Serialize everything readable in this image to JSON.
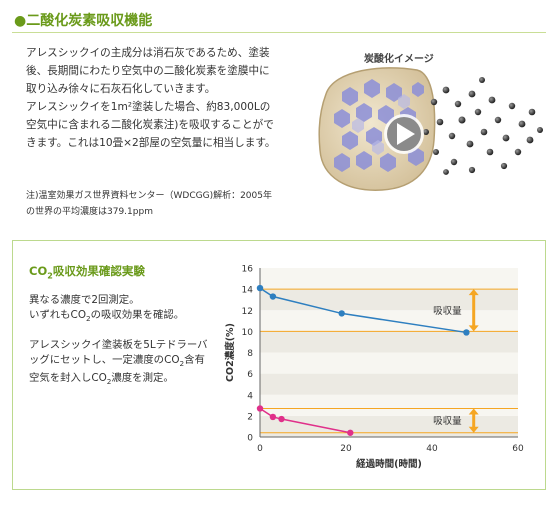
{
  "page": {
    "title": "●二酸化炭素吸収機能"
  },
  "intro": {
    "lines": [
      "アレスシックイの主成分は消石灰であるため、塗装",
      "後、長期間にわたり空気中の二酸化炭素を塗膜中に",
      "取り込み徐々に石灰石化していきます。",
      "アレスシックイを1m²塗装した場合、約83,000Lの",
      "空気中に含まれる二酸化炭素注)を吸収することがで",
      "きます。これは10畳×2部屋の空気量に相当します。"
    ]
  },
  "note": {
    "lines": [
      "注)温室効果ガス世界資料センター（WDCGG)解析：2005年",
      "の世界の平均濃度は379.1ppm"
    ]
  },
  "visual": {
    "label": "炭酸化イメージ",
    "icon": "play-icon"
  },
  "experiment": {
    "title": "CO2吸収効果確認実験",
    "text_a": [
      "異なる濃度で2回測定。",
      "いずれもCO2の吸収効果を確認。"
    ],
    "text_b": [
      "アレスシックイ塗装板を5Lテドラーバ",
      "ッグにセットし、一定濃度のCO2含有",
      "空気を封入しCO2濃度を測定。"
    ]
  },
  "colors": {
    "accent_green": "#6a9a1a",
    "series_high": "#2e7fc0",
    "series_low": "#e0308a",
    "bracket": "#f5a623",
    "band_dark": "#eceae3",
    "band_light": "#f7f6f1"
  },
  "chart_data": {
    "type": "line",
    "xlabel": "経過時間(時間)",
    "ylabel": "CO2濃度(%)",
    "xlim": [
      0,
      60
    ],
    "ylim": [
      0,
      16
    ],
    "xticks": [
      0,
      20,
      40,
      60
    ],
    "yticks": [
      0,
      2,
      4,
      6,
      8,
      10,
      12,
      14,
      16
    ],
    "series": [
      {
        "color": "#2e7fc0",
        "x": [
          0,
          3,
          19,
          48
        ],
        "y": [
          14.1,
          13.3,
          11.7,
          9.9
        ]
      },
      {
        "color": "#e0308a",
        "x": [
          0,
          3,
          5,
          21
        ],
        "y": [
          2.7,
          1.9,
          1.7,
          0.4
        ]
      }
    ],
    "reference_lines": [
      14.0,
      10.0,
      2.7,
      0.4
    ],
    "annotations": [
      {
        "text": "吸収量",
        "from": 14.0,
        "to": 10.0,
        "x": 49
      },
      {
        "text": "吸収量",
        "from": 2.7,
        "to": 0.4,
        "x": 49
      }
    ],
    "grid": "horizontal bands"
  }
}
